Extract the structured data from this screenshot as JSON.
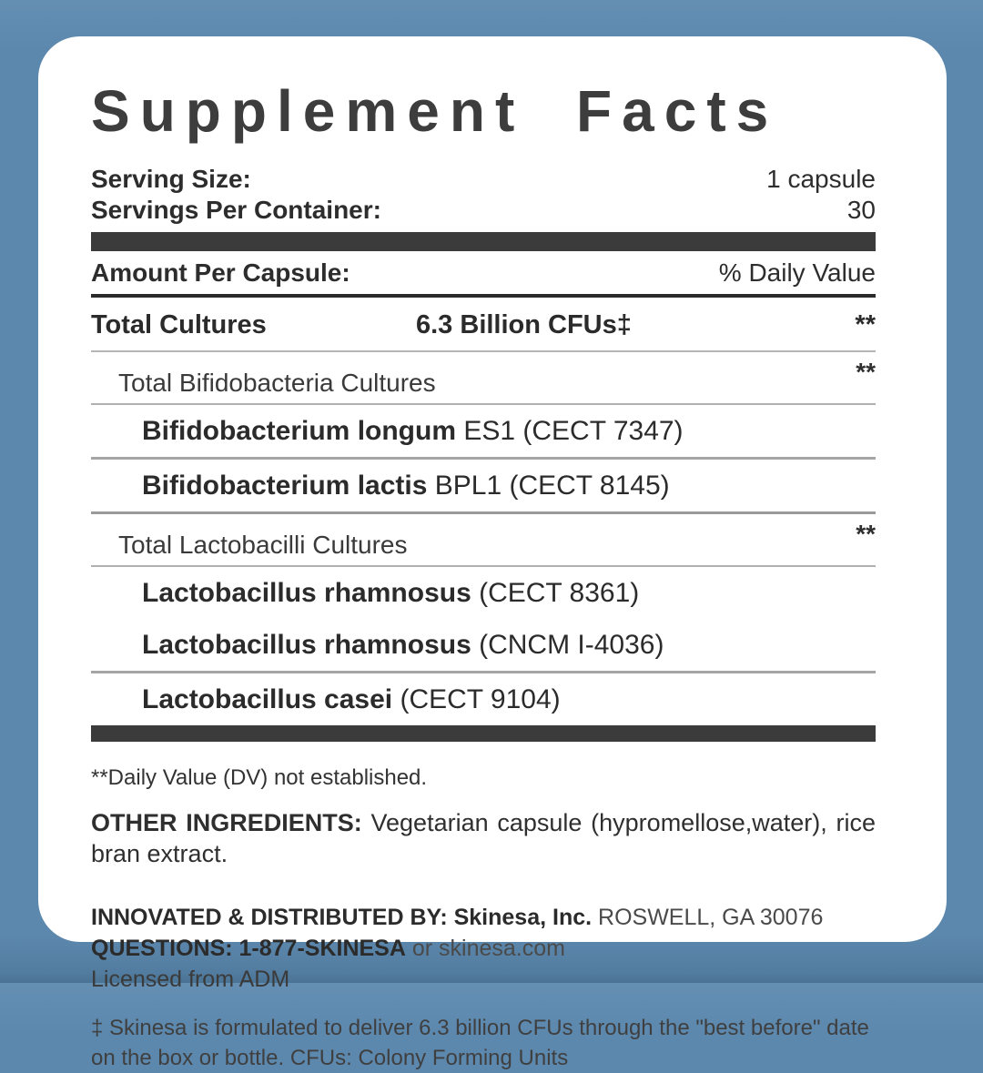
{
  "colors": {
    "background_blue": "#5d88ae",
    "card_white": "#ffffff",
    "text_dark": "#333333",
    "divider_bar": "#3b3b3b"
  },
  "panel": {
    "title": "Supplement Facts",
    "serving_size": {
      "label": "Serving Size:",
      "value": "1 capsule"
    },
    "servings_per_container": {
      "label": "Servings Per Container:",
      "value": "30"
    }
  },
  "table": {
    "header": {
      "amount_label": "Amount Per Capsule:",
      "dv_label": "% Daily Value"
    },
    "total_row": {
      "name": "Total Cultures",
      "amount": "6.3 Billion CFUs‡",
      "dv": "**"
    },
    "groups": [
      {
        "header": "Total Bifidobacteria Cultures",
        "dv": "**",
        "species": [
          {
            "bold": "Bifidobacterium longum",
            "rest": " ES1 (CECT 7347)"
          },
          {
            "bold": "Bifidobacterium lactis",
            "rest": " BPL1 (CECT 8145)"
          }
        ]
      },
      {
        "header": "Total Lactobacilli Cultures",
        "dv": "**",
        "species": [
          {
            "bold": "Lactobacillus rhamnosus",
            "rest": " (CECT 8361)"
          },
          {
            "bold": "Lactobacillus rhamnosus",
            "rest": " (CNCM I-4036)"
          },
          {
            "bold": "Lactobacillus casei",
            "rest": " (CECT 9104)"
          }
        ]
      }
    ]
  },
  "footnotes": {
    "dv_note": "**Daily Value (DV) not established.",
    "other_ingredients": {
      "label": "OTHER INGREDIENTS:",
      "text": " Vegetarian capsule (hypromellose,water), rice bran extract."
    },
    "distributor": {
      "bold": "INNOVATED & DISTRIBUTED BY: Skinesa, Inc.",
      "rest": " ROSWELL, GA 30076"
    },
    "questions": {
      "bold": "QUESTIONS: 1-877-SKINESA",
      "rest": " or skinesa.com"
    },
    "licensed": "Licensed from ADM",
    "dagger_note": "‡ Skinesa is formulated to deliver 6.3 billion CFUs through the \"best before\" date on the box or bottle. CFUs: Colony Forming Units"
  }
}
